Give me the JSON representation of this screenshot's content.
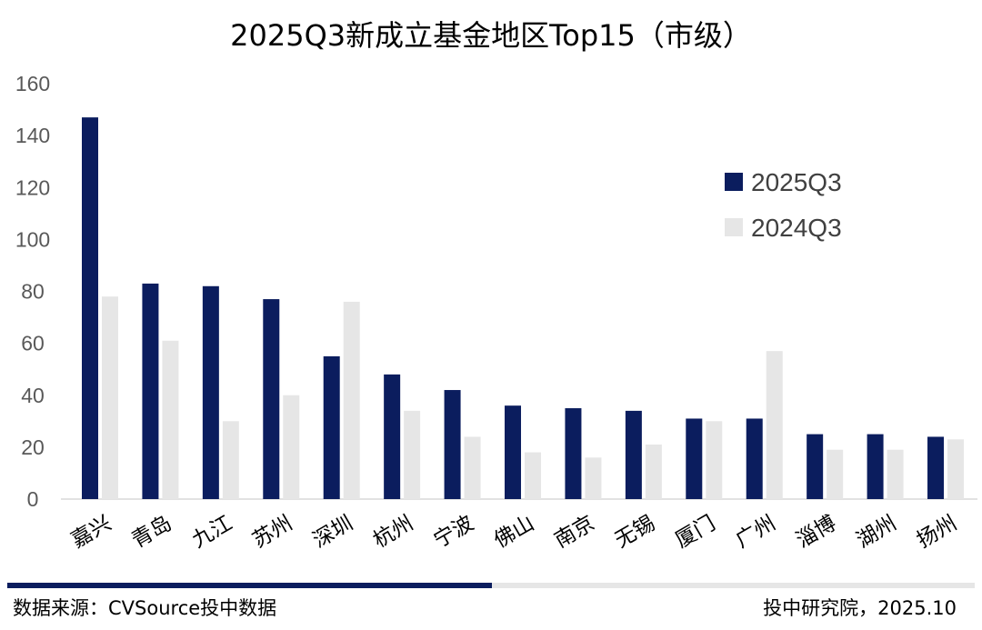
{
  "title": "2025Q3新成立基金地区Top15（市级）",
  "footer": {
    "source": "数据来源：CVSource投中数据",
    "org": "投中研究院，2025.10"
  },
  "colors": {
    "series_2025": "#0b1d5e",
    "series_2024": "#e6e6e6",
    "accent_bar": "#0b1d5e"
  },
  "chart_data": {
    "type": "bar",
    "title": "2025Q3新成立基金地区Top15（市级）",
    "categories": [
      "嘉兴",
      "青岛",
      "九江",
      "苏州",
      "深圳",
      "杭州",
      "宁波",
      "佛山",
      "南京",
      "无锡",
      "厦门",
      "广州",
      "淄博",
      "湖州",
      "扬州"
    ],
    "series": [
      {
        "name": "2025Q3",
        "values": [
          147,
          83,
          82,
          77,
          55,
          48,
          42,
          36,
          35,
          34,
          31,
          31,
          25,
          25,
          24
        ]
      },
      {
        "name": "2024Q3",
        "values": [
          78,
          61,
          30,
          40,
          76,
          34,
          24,
          18,
          16,
          21,
          30,
          57,
          19,
          19,
          23
        ]
      }
    ],
    "yticks": [
      0,
      20,
      40,
      60,
      80,
      100,
      120,
      140,
      160
    ],
    "ylim": [
      0,
      160
    ],
    "xlabel": "",
    "ylabel": "",
    "grid": false,
    "legend_position": "right"
  }
}
